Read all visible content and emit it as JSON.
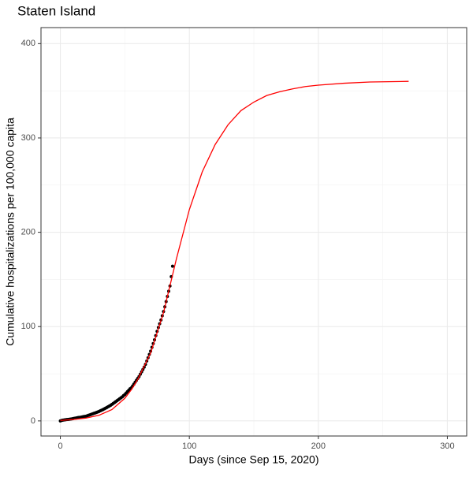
{
  "chart_data": {
    "type": "layered",
    "title": "Staten Island",
    "x_label": "Days (since Sep 15, 2020)",
    "y_label": "Cumulative hospitalizations per 100,000 capita",
    "xlim": [
      -15,
      315
    ],
    "ylim": [
      -16,
      417
    ],
    "xticks": [
      0,
      100,
      200,
      300
    ],
    "yticks": [
      0,
      100,
      200,
      300,
      400
    ],
    "xminor": [
      50,
      150,
      250
    ],
    "yminor": [
      50,
      150,
      250,
      350
    ],
    "grid": true,
    "layers": [
      {
        "type": "scatter",
        "color": "#000000",
        "x": [
          0,
          1,
          2,
          3,
          4,
          5,
          6,
          7,
          8,
          9,
          10,
          11,
          12,
          13,
          14,
          15,
          16,
          17,
          18,
          19,
          20,
          21,
          22,
          23,
          24,
          25,
          26,
          27,
          28,
          29,
          30,
          31,
          32,
          33,
          34,
          35,
          36,
          37,
          38,
          39,
          40,
          41,
          42,
          43,
          44,
          45,
          46,
          47,
          48,
          49,
          50,
          51,
          52,
          53,
          54,
          55,
          56,
          57,
          58,
          59,
          60,
          61,
          62,
          63,
          64,
          65,
          66,
          67,
          68,
          69,
          70,
          71,
          72,
          73,
          74,
          75,
          76,
          77,
          78,
          79,
          80,
          81,
          82,
          83,
          84,
          85,
          86,
          87
        ],
        "values": [
          0,
          0.5,
          0.8,
          1,
          1.2,
          1.4,
          1.6,
          1.8,
          2,
          2.2,
          2.5,
          2.8,
          3,
          3.3,
          3.6,
          3.8,
          4,
          4.3,
          4.6,
          4.8,
          5,
          5.5,
          6,
          6.5,
          7,
          7.5,
          8,
          8.5,
          9,
          9.5,
          10,
          10.7,
          11.4,
          12,
          12.7,
          13.5,
          14.2,
          15,
          15.8,
          16.6,
          17.5,
          18.5,
          19.5,
          20.5,
          21.5,
          22.5,
          23.5,
          24.5,
          25.5,
          26.8,
          28,
          29.5,
          31,
          32.5,
          34,
          35,
          37,
          39,
          41,
          43,
          45,
          47,
          49.5,
          52,
          54.5,
          57,
          60,
          63.5,
          67,
          70.5,
          74,
          78,
          82,
          86,
          90.5,
          95,
          99,
          103,
          107,
          111.5,
          116,
          121,
          126.5,
          132,
          137.5,
          143,
          153,
          164
        ]
      },
      {
        "type": "line",
        "color": "#ff0000",
        "x": [
          0,
          10,
          20,
          30,
          40,
          50,
          55,
          60,
          70,
          80,
          90,
          100,
          110,
          120,
          130,
          140,
          150,
          160,
          170,
          180,
          190,
          200,
          220,
          240,
          270
        ],
        "values": [
          0.5,
          1.5,
          3,
          6,
          12,
          24,
          33,
          44,
          72,
          115,
          172,
          224,
          264,
          293,
          314,
          329,
          338,
          345,
          349,
          352,
          354.5,
          356,
          358,
          359.3,
          360
        ]
      }
    ]
  }
}
